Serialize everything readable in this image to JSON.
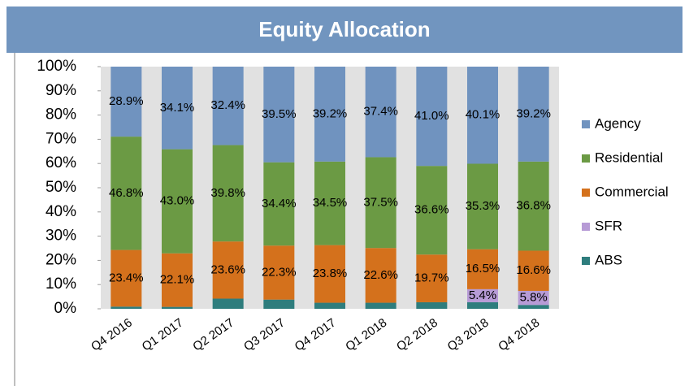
{
  "chart_data": {
    "type": "stacked_bar",
    "title": "Equity Allocation",
    "categories": [
      "Q4 2016",
      "Q1 2017",
      "Q2 2017",
      "Q3 2017",
      "Q4 2017",
      "Q1 2018",
      "Q2 2018",
      "Q3 2018",
      "Q4 2018"
    ],
    "series": [
      {
        "name": "ABS",
        "color": "#2e7d7d",
        "values": [
          0.9,
          0.8,
          4.2,
          3.8,
          2.5,
          2.5,
          2.7,
          2.7,
          1.6
        ]
      },
      {
        "name": "SFR",
        "color": "#b79bd6",
        "values": [
          0,
          0,
          0,
          0,
          0,
          0,
          0,
          5.4,
          5.8
        ],
        "value_labels": [
          null,
          null,
          null,
          null,
          null,
          null,
          null,
          "5.4%",
          "5.8%"
        ]
      },
      {
        "name": "Commercial",
        "color": "#d4711c",
        "values": [
          23.4,
          22.1,
          23.6,
          22.3,
          23.8,
          22.6,
          19.7,
          16.5,
          16.6
        ],
        "value_labels": [
          "23.4%",
          "22.1%",
          "23.6%",
          "22.3%",
          "23.8%",
          "22.6%",
          "19.7%",
          "16.5%",
          "16.6%"
        ]
      },
      {
        "name": "Residential",
        "color": "#6b9a44",
        "values": [
          46.8,
          43.0,
          39.8,
          34.4,
          34.5,
          37.5,
          36.6,
          35.3,
          36.8
        ],
        "value_labels": [
          "46.8%",
          "43.0%",
          "39.8%",
          "34.4%",
          "34.5%",
          "37.5%",
          "36.6%",
          "35.3%",
          "36.8%"
        ]
      },
      {
        "name": "Agency",
        "color": "#7093bf",
        "values": [
          28.9,
          34.1,
          32.4,
          39.5,
          39.2,
          37.4,
          41.0,
          40.1,
          39.2
        ],
        "value_labels": [
          "28.9%",
          "34.1%",
          "32.4%",
          "39.5%",
          "39.2%",
          "37.4%",
          "41.0%",
          "40.1%",
          "39.2%"
        ]
      }
    ],
    "ylim": [
      0,
      100
    ],
    "yticks": [
      {
        "value": 0,
        "label": "0%"
      },
      {
        "value": 10,
        "label": "10%"
      },
      {
        "value": 20,
        "label": "20%"
      },
      {
        "value": 30,
        "label": "30%"
      },
      {
        "value": 40,
        "label": "40%"
      },
      {
        "value": 50,
        "label": "50%"
      },
      {
        "value": 60,
        "label": "60%"
      },
      {
        "value": 70,
        "label": "70%"
      },
      {
        "value": 80,
        "label": "80%"
      },
      {
        "value": 90,
        "label": "90%"
      },
      {
        "value": 100,
        "label": "100%"
      }
    ],
    "legend": "right"
  }
}
